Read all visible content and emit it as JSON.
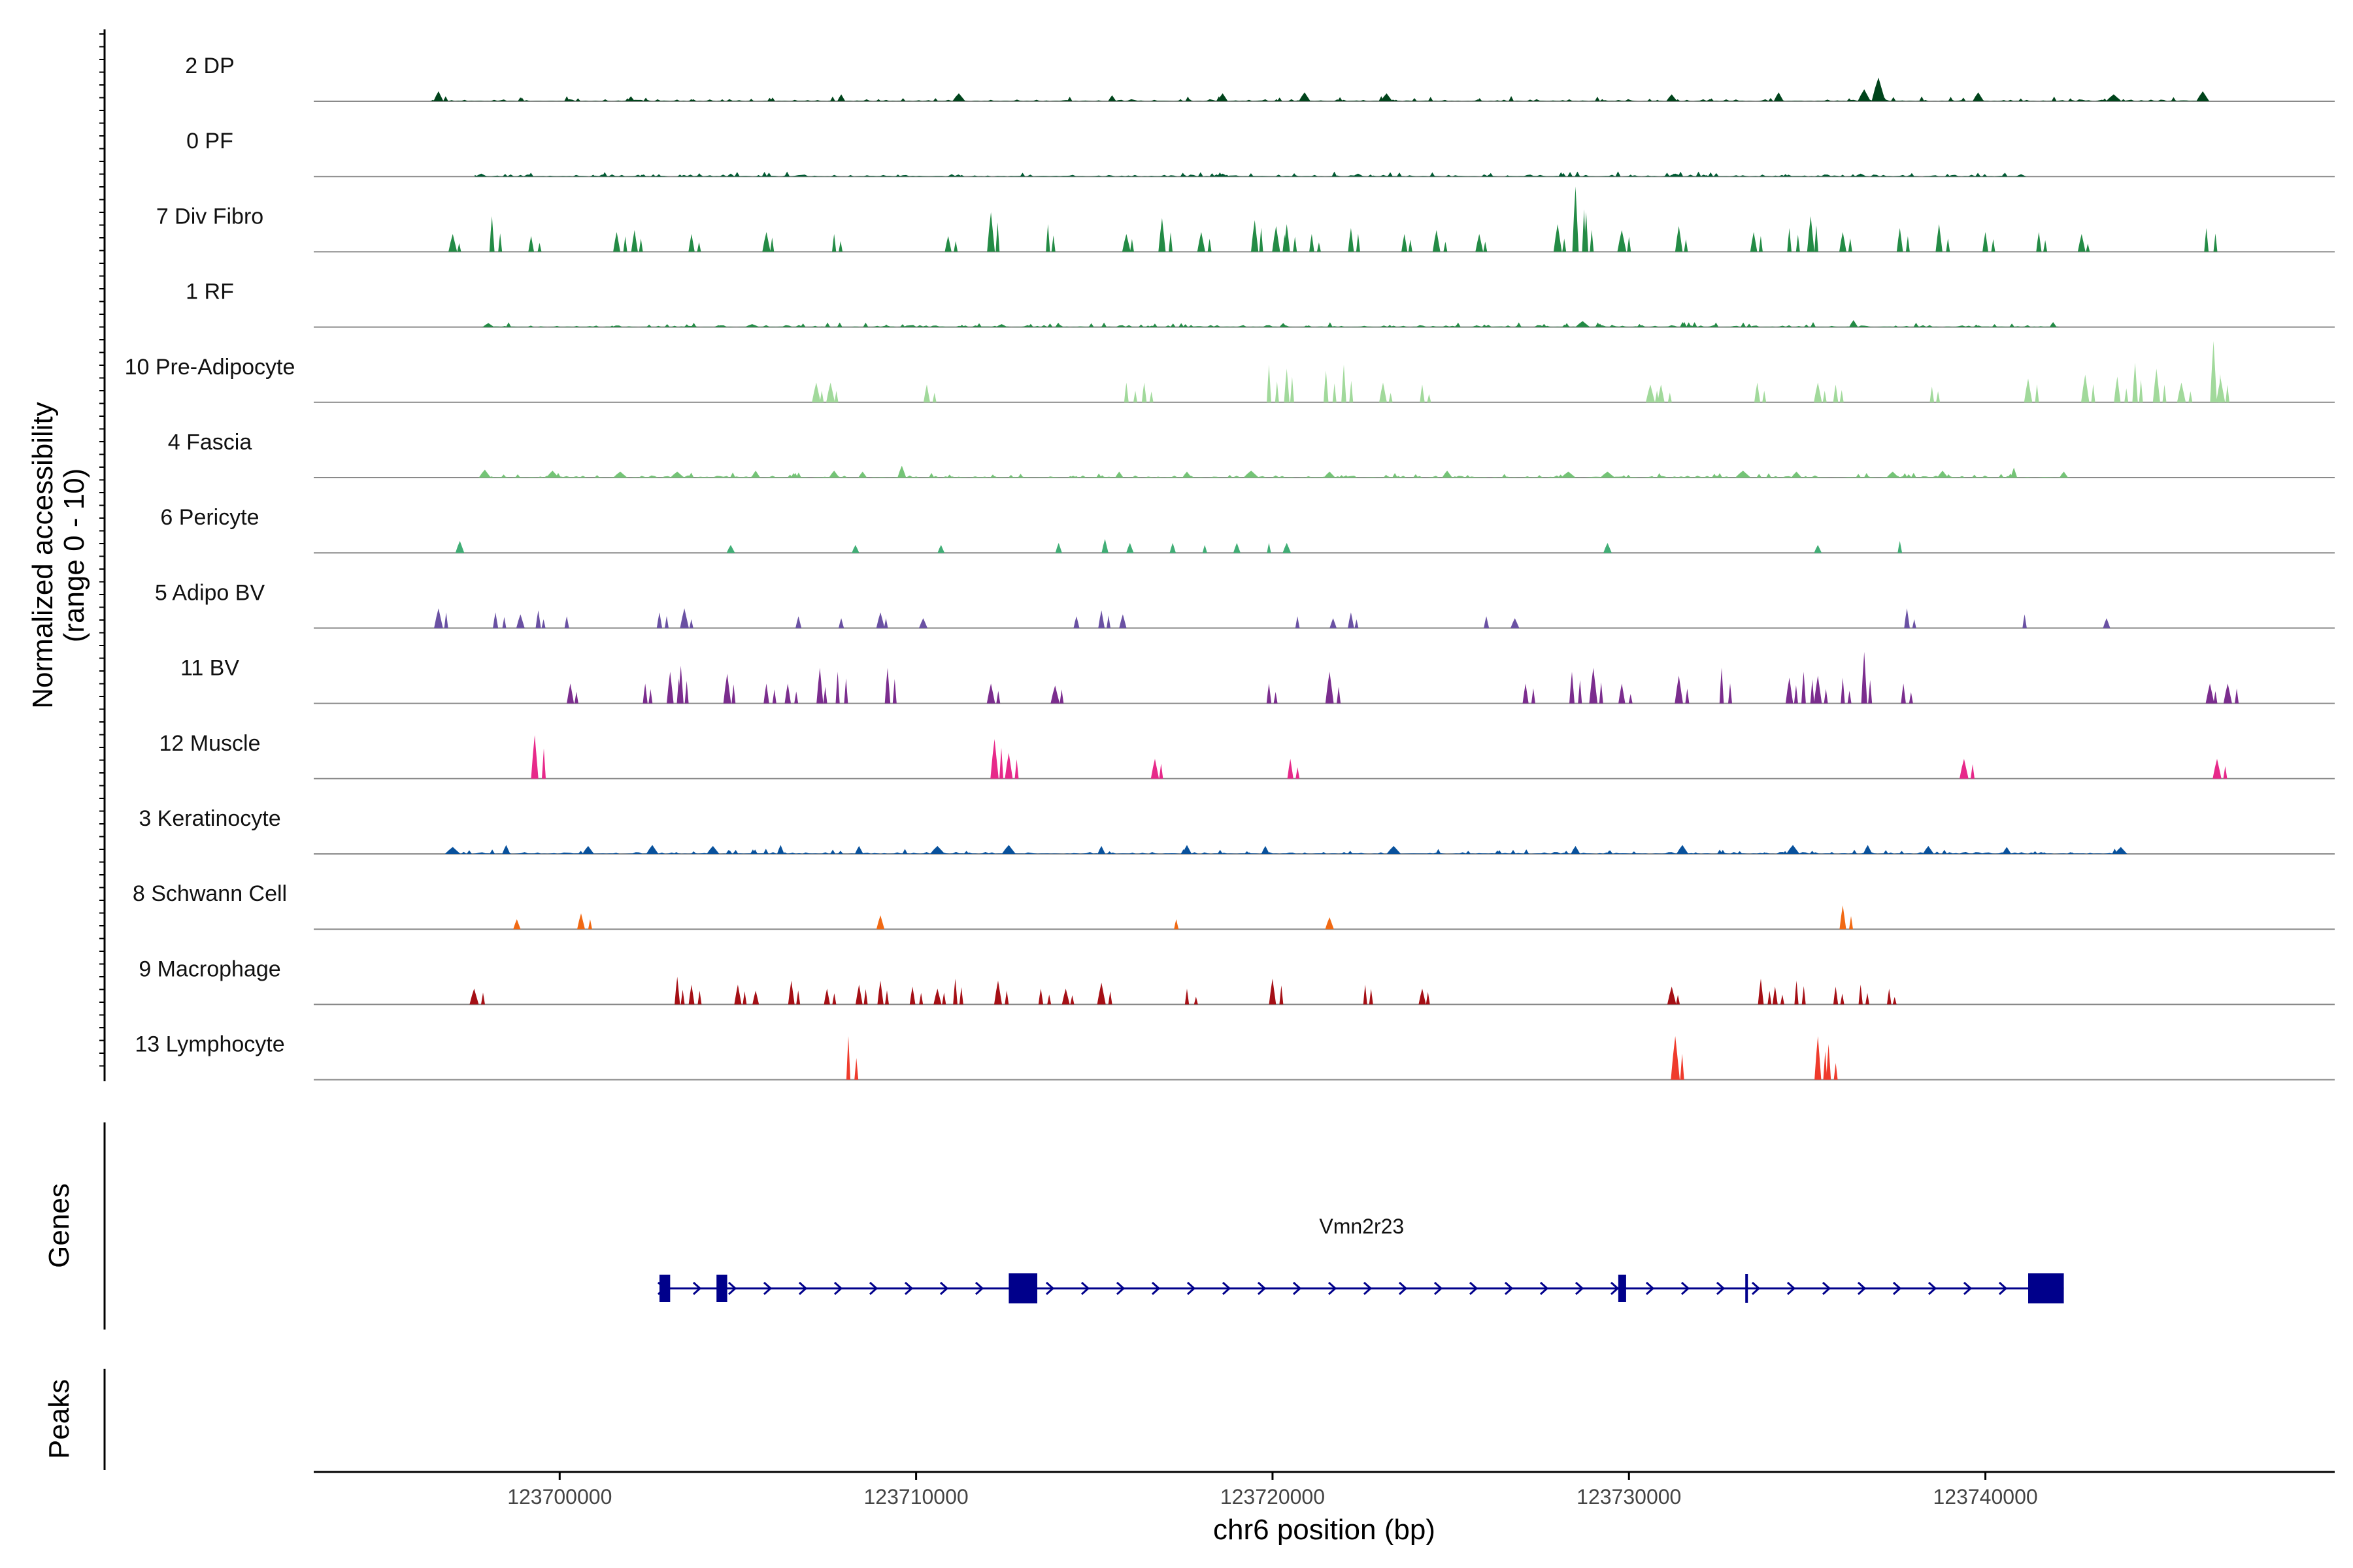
{
  "chart_data": {
    "type": "area",
    "title": "",
    "ylabel_line1": "Normalized accessibility",
    "ylabel_line2": "(range 0 - 10)",
    "ylim": [
      0,
      10
    ],
    "xlabel": "chr6 position (bp)",
    "xlim": [
      123693100,
      123749800
    ],
    "xticks": [
      123700000,
      123710000,
      123720000,
      123730000,
      123740000
    ],
    "xtick_labels": [
      "123700000",
      "123710000",
      "123720000",
      "123730000",
      "123740000"
    ],
    "series": [
      {
        "name": "2 DP",
        "color": "#00441b",
        "style": "dense",
        "seed": 2,
        "peaks": [
          [
            123696600,
            0.5
          ],
          [
            123702000,
            0.25
          ],
          [
            123707900,
            0.35
          ],
          [
            123711200,
            0.4
          ],
          [
            123715500,
            0.3
          ],
          [
            123718600,
            0.4
          ],
          [
            123720900,
            0.45
          ],
          [
            123723200,
            0.4
          ],
          [
            123731200,
            0.35
          ],
          [
            123734200,
            0.45
          ],
          [
            123736600,
            0.6
          ],
          [
            123737000,
            1.2
          ],
          [
            123739800,
            0.45
          ],
          [
            123743600,
            0.35
          ],
          [
            123746100,
            0.5
          ]
        ]
      },
      {
        "name": "0 PF",
        "color": "#005a32",
        "style": "dense",
        "seed": 7,
        "peaks": [
          [
            123697800,
            0.15
          ],
          [
            123704800,
            0.15
          ],
          [
            123711000,
            0.12
          ],
          [
            123718600,
            0.15
          ],
          [
            123722400,
            0.15
          ],
          [
            123726100,
            0.12
          ],
          [
            123731300,
            0.15
          ],
          [
            123736500,
            0.15
          ],
          [
            123741000,
            0.12
          ]
        ]
      },
      {
        "name": "7 Div Fibro",
        "color": "#238b45",
        "style": "sparse",
        "seed": 11,
        "peaks": [
          [
            123697000,
            0.9
          ],
          [
            123698100,
            1.8
          ],
          [
            123699200,
            0.8
          ],
          [
            123701600,
            1.0
          ],
          [
            123702100,
            1.1
          ],
          [
            123703700,
            0.9
          ],
          [
            123705800,
            1.0
          ],
          [
            123707700,
            0.9
          ],
          [
            123710900,
            0.8
          ],
          [
            123712100,
            2.0
          ],
          [
            123713700,
            1.4
          ],
          [
            123715900,
            0.9
          ],
          [
            123716900,
            1.7
          ],
          [
            123718000,
            1.0
          ],
          [
            123719500,
            1.6
          ],
          [
            123720100,
            1.3
          ],
          [
            123720400,
            1.4
          ],
          [
            123721100,
            0.9
          ],
          [
            123722200,
            1.2
          ],
          [
            123723700,
            0.9
          ],
          [
            123724600,
            1.1
          ],
          [
            123725800,
            0.9
          ],
          [
            123728000,
            1.4
          ],
          [
            123728500,
            3.5
          ],
          [
            123728800,
            2.0
          ],
          [
            123729800,
            1.1
          ],
          [
            123731400,
            1.3
          ],
          [
            123733500,
            1.0
          ],
          [
            123734500,
            1.2
          ],
          [
            123735100,
            1.8
          ],
          [
            123736000,
            1.0
          ],
          [
            123737600,
            1.2
          ],
          [
            123738700,
            1.4
          ],
          [
            123740000,
            1.0
          ],
          [
            123741500,
            1.0
          ],
          [
            123742700,
            0.9
          ],
          [
            123746200,
            1.2
          ]
        ]
      },
      {
        "name": "1 RF",
        "color": "#238b45",
        "style": "dense",
        "seed": 13,
        "peaks": [
          [
            123698000,
            0.2
          ],
          [
            123705400,
            0.15
          ],
          [
            123712400,
            0.15
          ],
          [
            123720300,
            0.2
          ],
          [
            123728700,
            0.3
          ],
          [
            123736300,
            0.35
          ],
          [
            123741900,
            0.25
          ]
        ]
      },
      {
        "name": "10 Pre-Adipocyte",
        "color": "#a1d99b",
        "style": "sparse",
        "seed": 17,
        "peaks": [
          [
            123707200,
            1.0
          ],
          [
            123707600,
            1.0
          ],
          [
            123710300,
            0.9
          ],
          [
            123715900,
            1.0
          ],
          [
            123716400,
            1.0
          ],
          [
            123719900,
            1.9
          ],
          [
            123720400,
            1.7
          ],
          [
            123721500,
            1.6
          ],
          [
            123722000,
            1.9
          ],
          [
            123723100,
            1.0
          ],
          [
            123724200,
            0.9
          ],
          [
            123730600,
            0.9
          ],
          [
            123730900,
            0.9
          ],
          [
            123733600,
            1.0
          ],
          [
            123735300,
            1.0
          ],
          [
            123735800,
            0.9
          ],
          [
            123738500,
            0.8
          ],
          [
            123741200,
            1.2
          ],
          [
            123742800,
            1.4
          ],
          [
            123743700,
            1.3
          ],
          [
            123744200,
            2.0
          ],
          [
            123744800,
            1.7
          ],
          [
            123745500,
            1.0
          ],
          [
            123746400,
            3.1
          ],
          [
            123746600,
            1.2
          ]
        ]
      },
      {
        "name": "4 Fascia",
        "color": "#74c476",
        "style": "dense",
        "seed": 19,
        "peaks": [
          [
            123697900,
            0.4
          ],
          [
            123699800,
            0.35
          ],
          [
            123701700,
            0.3
          ],
          [
            123703300,
            0.3
          ],
          [
            123705500,
            0.35
          ],
          [
            123707700,
            0.35
          ],
          [
            123708500,
            0.3
          ],
          [
            123709600,
            0.6
          ],
          [
            123715700,
            0.3
          ],
          [
            123717600,
            0.3
          ],
          [
            123719400,
            0.35
          ],
          [
            123721600,
            0.3
          ],
          [
            123724900,
            0.35
          ],
          [
            123728300,
            0.3
          ],
          [
            123729400,
            0.3
          ],
          [
            123733200,
            0.35
          ],
          [
            123734700,
            0.3
          ],
          [
            123737400,
            0.3
          ],
          [
            123738800,
            0.35
          ],
          [
            123740800,
            0.5
          ],
          [
            123742200,
            0.3
          ]
        ]
      },
      {
        "name": "6 Pericyte",
        "color": "#41ae76",
        "style": "sparse",
        "seed": 23,
        "peaks": [
          [
            123697200,
            0.6
          ],
          [
            123704800,
            0.4
          ],
          [
            123708300,
            0.4
          ],
          [
            123710700,
            0.4
          ],
          [
            123714000,
            0.5
          ],
          [
            123715300,
            0.7
          ],
          [
            123716000,
            0.5
          ],
          [
            123717200,
            0.5
          ],
          [
            123718100,
            0.4
          ],
          [
            123719000,
            0.5
          ],
          [
            123719900,
            0.5
          ],
          [
            123720400,
            0.5
          ],
          [
            123729400,
            0.5
          ],
          [
            123735300,
            0.4
          ],
          [
            123737600,
            0.6
          ]
        ]
      },
      {
        "name": "5 Adipo BV",
        "color": "#6a51a3",
        "style": "sparse",
        "seed": 29,
        "peaks": [
          [
            123696600,
            1.0
          ],
          [
            123698200,
            0.8
          ],
          [
            123698900,
            0.7
          ],
          [
            123699400,
            0.9
          ],
          [
            123700200,
            0.6
          ],
          [
            123702800,
            0.8
          ],
          [
            123703500,
            1.0
          ],
          [
            123706700,
            0.6
          ],
          [
            123707900,
            0.5
          ],
          [
            123709000,
            0.8
          ],
          [
            123710200,
            0.5
          ],
          [
            123714500,
            0.6
          ],
          [
            123715200,
            0.9
          ],
          [
            123715800,
            0.7
          ],
          [
            123720700,
            0.6
          ],
          [
            123721700,
            0.5
          ],
          [
            123722200,
            0.8
          ],
          [
            123726000,
            0.6
          ],
          [
            123726800,
            0.5
          ],
          [
            123737800,
            1.0
          ],
          [
            123741100,
            0.7
          ],
          [
            123743400,
            0.5
          ]
        ]
      },
      {
        "name": "11 BV",
        "color": "#7b2d8e",
        "style": "sparse",
        "seed": 31,
        "peaks": [
          [
            123700300,
            1.0
          ],
          [
            123702400,
            1.0
          ],
          [
            123703100,
            1.6
          ],
          [
            123703400,
            1.9
          ],
          [
            123704700,
            1.5
          ],
          [
            123705800,
            1.0
          ],
          [
            123706400,
            1.0
          ],
          [
            123707300,
            1.8
          ],
          [
            123707800,
            1.6
          ],
          [
            123709200,
            1.8
          ],
          [
            123712100,
            1.0
          ],
          [
            123713900,
            0.9
          ],
          [
            123719900,
            1.0
          ],
          [
            123721600,
            1.6
          ],
          [
            123727100,
            1.0
          ],
          [
            123728400,
            1.6
          ],
          [
            123729000,
            1.8
          ],
          [
            123729800,
            1.0
          ],
          [
            123731400,
            1.4
          ],
          [
            123732600,
            1.8
          ],
          [
            123734500,
            1.3
          ],
          [
            123734900,
            1.6
          ],
          [
            123735300,
            1.4
          ],
          [
            123736000,
            1.3
          ],
          [
            123736600,
            2.6
          ],
          [
            123737700,
            1.0
          ],
          [
            123746300,
            1.0
          ],
          [
            123746800,
            1.0
          ]
        ]
      },
      {
        "name": "12 Muscle",
        "color": "#e7298a",
        "style": "sparse",
        "seed": 37,
        "peaks": [
          [
            123699300,
            2.2
          ],
          [
            123712200,
            2.0
          ],
          [
            123712600,
            1.3
          ],
          [
            123716700,
            1.0
          ],
          [
            123720500,
            1.0
          ],
          [
            123739400,
            1.0
          ],
          [
            123746500,
            1.0
          ]
        ]
      },
      {
        "name": "3 Keratinocyte",
        "color": "#08519c",
        "style": "dense",
        "seed": 41,
        "peaks": [
          [
            123697000,
            0.35
          ],
          [
            123698500,
            0.45
          ],
          [
            123700800,
            0.4
          ],
          [
            123702600,
            0.45
          ],
          [
            123704300,
            0.4
          ],
          [
            123706200,
            0.45
          ],
          [
            123708400,
            0.4
          ],
          [
            123710600,
            0.4
          ],
          [
            123712600,
            0.45
          ],
          [
            123715200,
            0.4
          ],
          [
            123717600,
            0.45
          ],
          [
            123719800,
            0.4
          ],
          [
            123723400,
            0.4
          ],
          [
            123728500,
            0.4
          ],
          [
            123731500,
            0.45
          ],
          [
            123734600,
            0.45
          ],
          [
            123736700,
            0.45
          ],
          [
            123738400,
            0.4
          ],
          [
            123740600,
            0.35
          ],
          [
            123743800,
            0.35
          ]
        ]
      },
      {
        "name": "8 Schwann Cell",
        "color": "#f16913",
        "style": "sparse",
        "seed": 43,
        "peaks": [
          [
            123698800,
            0.5
          ],
          [
            123700600,
            0.8
          ],
          [
            123709000,
            0.7
          ],
          [
            123717300,
            0.5
          ],
          [
            123721600,
            0.6
          ],
          [
            123736000,
            1.2
          ]
        ]
      },
      {
        "name": "9 Macrophage",
        "color": "#a50f15",
        "style": "sparse",
        "seed": 47,
        "peaks": [
          [
            123697600,
            0.8
          ],
          [
            123703300,
            1.4
          ],
          [
            123703700,
            1.0
          ],
          [
            123705000,
            1.0
          ],
          [
            123705500,
            0.7
          ],
          [
            123706500,
            1.2
          ],
          [
            123707500,
            0.8
          ],
          [
            123708400,
            1.0
          ],
          [
            123709000,
            1.2
          ],
          [
            123709900,
            0.9
          ],
          [
            123710600,
            0.8
          ],
          [
            123711100,
            1.3
          ],
          [
            123712300,
            1.2
          ],
          [
            123713500,
            0.8
          ],
          [
            123714200,
            0.8
          ],
          [
            123715200,
            1.1
          ],
          [
            123717600,
            0.8
          ],
          [
            123720000,
            1.3
          ],
          [
            123722600,
            1.0
          ],
          [
            123724200,
            0.8
          ],
          [
            123731200,
            0.9
          ],
          [
            123733700,
            1.3
          ],
          [
            123734100,
            0.9
          ],
          [
            123734700,
            1.2
          ],
          [
            123735800,
            0.9
          ],
          [
            123736500,
            1.0
          ],
          [
            123737300,
            0.8
          ]
        ]
      },
      {
        "name": "13 Lymphocyte",
        "color": "#ef3b2c",
        "style": "sparse",
        "seed": 53,
        "peaks": [
          [
            123708100,
            2.2
          ],
          [
            123731300,
            2.2
          ],
          [
            123735300,
            2.2
          ],
          [
            123735600,
            1.8
          ]
        ]
      }
    ],
    "genes_label": "Genes",
    "peaks_label": "Peaks",
    "gene": {
      "name": "Vmn2r23",
      "color": "#00008b",
      "start": 123702800,
      "end": 123742200,
      "strand": "+",
      "exons": [
        [
          123702800,
          123703100
        ],
        [
          123704400,
          123704700
        ],
        [
          123712600,
          123713400
        ],
        [
          123729700,
          123729900
        ],
        [
          123741200,
          123742200
        ]
      ],
      "marker_positions": [
        123733300
      ]
    }
  }
}
